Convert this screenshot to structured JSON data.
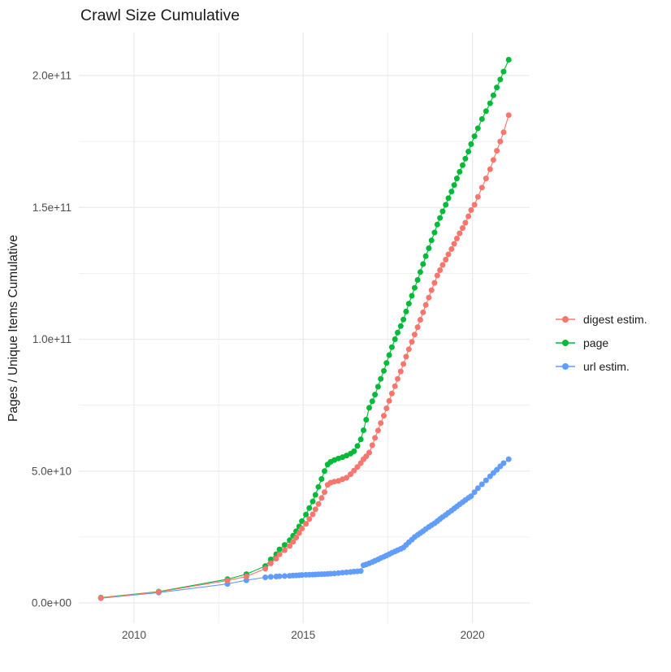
{
  "page_title": "Crawl Size Cumulative",
  "chart_data": {
    "type": "line",
    "title": "Crawl Size Cumulative",
    "xlabel": "",
    "ylabel": "Pages / Unique Items Cumulative",
    "grid": "major and minor, light gray on white panel",
    "legend_position": "right-center",
    "x_range_shown": [
      2008.4,
      2021.7
    ],
    "y_range_shown_e9": [
      -8,
      216
    ],
    "x_ticks": [
      {
        "year": 2010,
        "label": "2010"
      },
      {
        "year": 2015,
        "label": "2015"
      },
      {
        "year": 2020,
        "label": "2020"
      }
    ],
    "x_minor_ticks_years": [
      2012.5,
      2017.5
    ],
    "y_ticks": [
      {
        "value_e9": 0,
        "label": "0.0e+00"
      },
      {
        "value_e9": 50,
        "label": "5.0e+10"
      },
      {
        "value_e9": 100,
        "label": "1.0e+11"
      },
      {
        "value_e9": 150,
        "label": "1.5e+11"
      },
      {
        "value_e9": 200,
        "label": "2.0e+11"
      }
    ],
    "y_minor_ticks_e9": [
      25,
      75,
      125,
      175
    ],
    "values_unit": "billions (1e9) of pages / unique items, cumulative",
    "x_shared_years": [
      2009.02,
      2010.73,
      2012.76,
      2013.32,
      2013.88,
      2014.04,
      2014.2,
      2014.3,
      2014.45,
      2014.6,
      2014.7,
      2014.79,
      2014.88,
      2014.96,
      2015.08,
      2015.18,
      2015.28,
      2015.36,
      2015.45,
      2015.54,
      2015.63,
      2015.72,
      2015.81,
      2015.92,
      2016.04,
      2016.16,
      2016.28,
      2016.4,
      2016.5,
      2016.6,
      2016.7,
      2016.78,
      2016.86,
      2016.95,
      2017.04,
      2017.12,
      2017.21,
      2017.29,
      2017.38,
      2017.46,
      2017.54,
      2017.62,
      2017.71,
      2017.79,
      2017.88,
      2017.96,
      2018.04,
      2018.12,
      2018.21,
      2018.29,
      2018.38,
      2018.46,
      2018.54,
      2018.62,
      2018.71,
      2018.79,
      2018.88,
      2018.96,
      2019.04,
      2019.12,
      2019.21,
      2019.29,
      2019.38,
      2019.46,
      2019.54,
      2019.62,
      2019.71,
      2019.79,
      2019.88,
      2019.96,
      2020.06,
      2020.16,
      2020.28,
      2020.4,
      2020.52,
      2020.62,
      2020.72,
      2020.82,
      2020.92,
      2021.07
    ],
    "series": [
      {
        "name": "digest estim.",
        "color": "#F8766D",
        "values_e9": [
          1.9,
          4.2,
          8.5,
          10.0,
          13.0,
          15.0,
          16.8,
          18.4,
          20.0,
          21.6,
          23.2,
          24.8,
          26.5,
          28.2,
          30.0,
          31.8,
          33.6,
          35.5,
          37.5,
          39.8,
          42.0,
          44.8,
          45.6,
          46.0,
          46.3,
          46.9,
          47.5,
          48.8,
          50.2,
          51.6,
          53.0,
          54.5,
          55.6,
          57.0,
          59.8,
          62.6,
          65.4,
          68.2,
          71.0,
          73.8,
          76.6,
          79.4,
          82.2,
          85.0,
          87.8,
          90.6,
          93.4,
          96.2,
          99.0,
          101.8,
          104.6,
          107.4,
          110.2,
          113.0,
          115.8,
          118.6,
          121.4,
          124.2,
          126.2,
          128.2,
          130.2,
          132.2,
          134.2,
          136.2,
          138.2,
          140.2,
          142.2,
          144.2,
          146.6,
          149.0,
          151.0,
          154.0,
          157.5,
          161.0,
          164.5,
          168.0,
          171.5,
          175.0,
          178.5,
          185.0
        ]
      },
      {
        "name": "page",
        "color": "#00BA38",
        "values_e9": [
          2.0,
          4.3,
          9.0,
          10.9,
          14.0,
          16.5,
          18.5,
          20.3,
          22.0,
          23.8,
          25.5,
          27.2,
          29.0,
          31.0,
          33.5,
          36.0,
          38.5,
          41.0,
          44.0,
          47.0,
          50.0,
          52.5,
          53.5,
          54.2,
          54.8,
          55.3,
          55.9,
          56.6,
          57.5,
          59.5,
          62.0,
          65.5,
          69.5,
          74.0,
          76.5,
          79.0,
          82.0,
          85.0,
          88.0,
          91.0,
          94.0,
          97.0,
          100.0,
          102.5,
          105.0,
          107.5,
          110.5,
          113.5,
          116.5,
          119.5,
          122.5,
          125.5,
          128.5,
          131.5,
          134.5,
          137.5,
          140.5,
          143.5,
          146.0,
          148.5,
          151.0,
          153.5,
          156.0,
          158.5,
          161.0,
          163.5,
          166.0,
          168.5,
          171.2,
          174.0,
          177.0,
          180.0,
          183.5,
          186.5,
          189.5,
          192.5,
          195.5,
          198.5,
          201.5,
          206.0
        ]
      },
      {
        "name": "url estim.",
        "color": "#619CFF",
        "values_e9": [
          1.8,
          3.9,
          7.2,
          8.6,
          9.7,
          9.9,
          10.0,
          10.1,
          10.2,
          10.3,
          10.4,
          10.45,
          10.5,
          10.6,
          10.65,
          10.7,
          10.75,
          10.8,
          10.85,
          10.9,
          10.95,
          11.0,
          11.1,
          11.2,
          11.3,
          11.5,
          11.6,
          11.75,
          11.9,
          12.0,
          12.1,
          14.3,
          14.6,
          15.0,
          15.5,
          16.0,
          16.5,
          17.0,
          17.5,
          18.0,
          18.5,
          19.0,
          19.5,
          20.0,
          20.5,
          21.0,
          22.0,
          23.0,
          24.0,
          25.0,
          25.8,
          26.5,
          27.2,
          28.0,
          28.8,
          29.5,
          30.2,
          31.0,
          31.8,
          32.6,
          33.4,
          34.2,
          35.0,
          35.8,
          36.6,
          37.4,
          38.2,
          39.0,
          39.8,
          40.5,
          42.0,
          43.5,
          45.0,
          46.5,
          48.0,
          49.3,
          50.5,
          51.8,
          53.0,
          54.5
        ]
      }
    ],
    "colors": {
      "digest_estim": "#F8766D",
      "page": "#00BA38",
      "url_estim": "#619CFF",
      "grid": "#EBEBEB",
      "tick_text": "#4D4D4D",
      "title_text": "#1A1A1A"
    }
  }
}
